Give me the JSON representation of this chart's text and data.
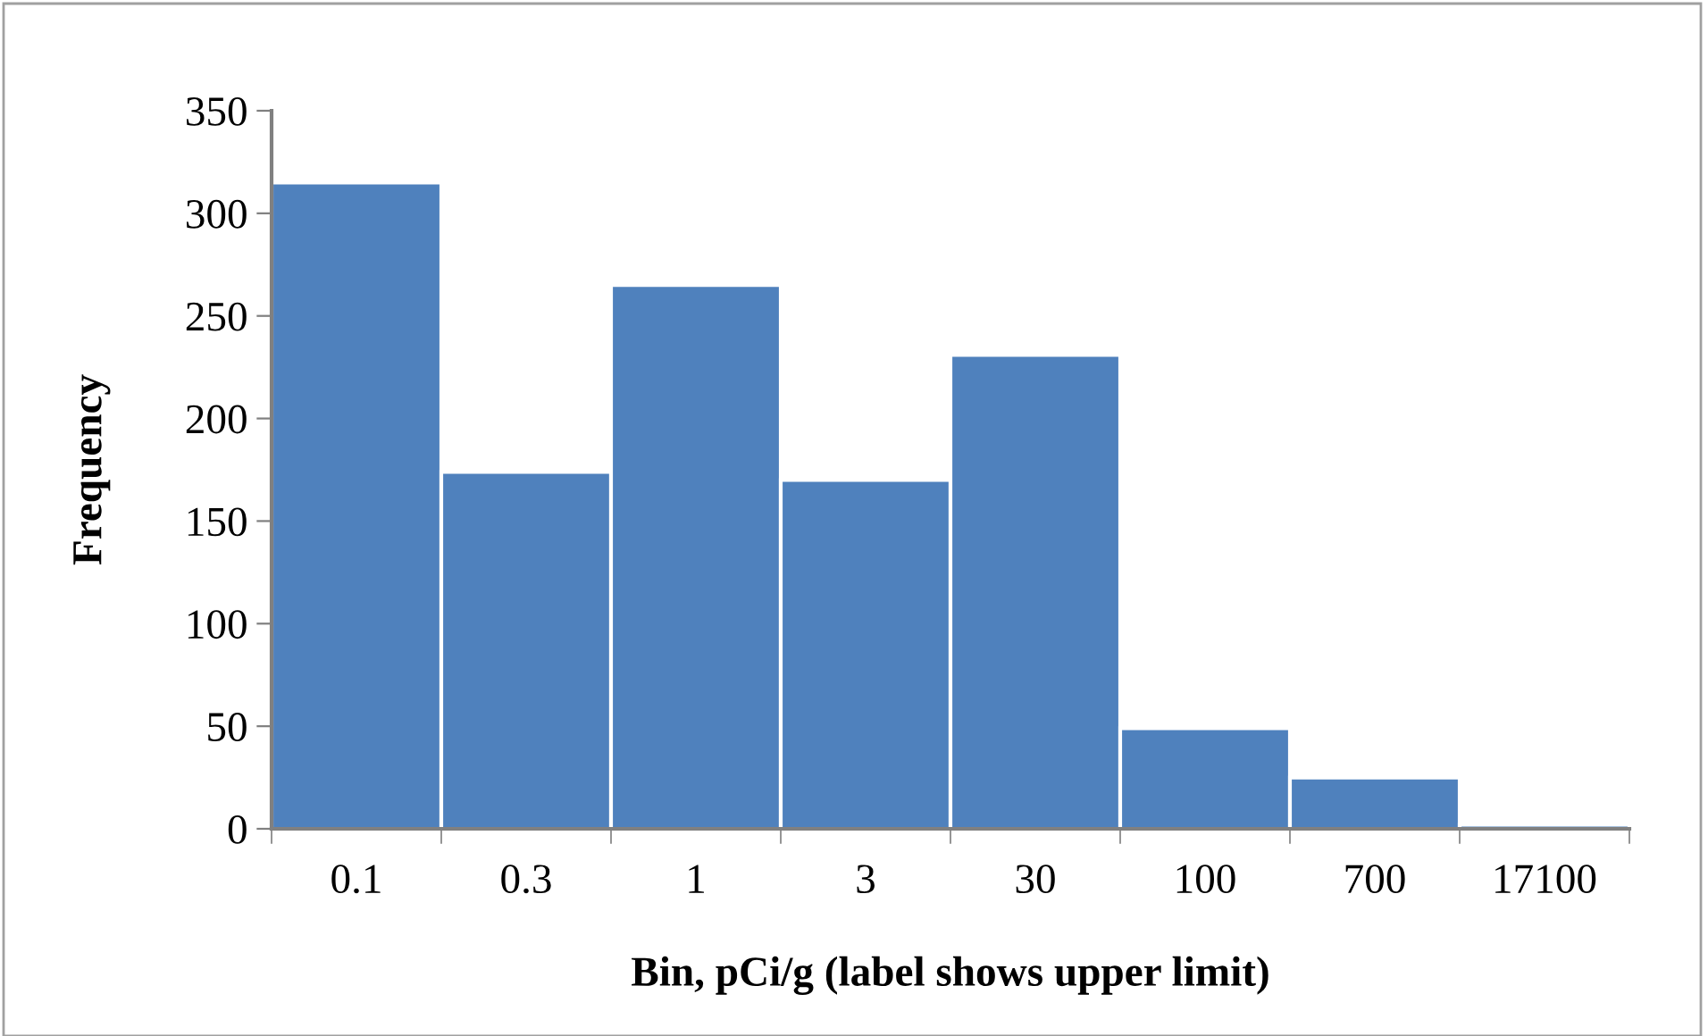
{
  "chart_data": {
    "type": "bar",
    "xlabel": "Bin, pCi/g (label shows upper limit)",
    "ylabel": "Frequency",
    "categories": [
      "0.1",
      "0.3",
      "1",
      "3",
      "30",
      "100",
      "700",
      "17100"
    ],
    "values": [
      315,
      174,
      265,
      170,
      231,
      49,
      25,
      2
    ],
    "color": "#4f81bd",
    "ylim": [
      0,
      350
    ],
    "yticks": [
      0,
      50,
      100,
      150,
      200,
      250,
      300,
      350
    ],
    "grid": false
  }
}
